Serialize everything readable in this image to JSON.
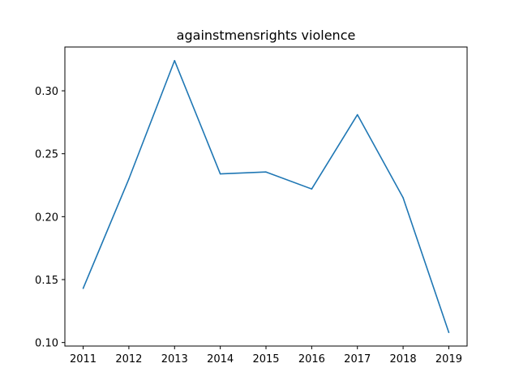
{
  "chart_data": {
    "type": "line",
    "title": "againstmensrights violence",
    "xlabel": "",
    "ylabel": "",
    "x": [
      2011,
      2012,
      2013,
      2014,
      2015,
      2016,
      2017,
      2018,
      2019
    ],
    "series": [
      {
        "values": [
          0.143,
          0.23,
          0.324,
          0.234,
          0.2355,
          0.222,
          0.281,
          0.215,
          0.108
        ],
        "color": "#1f77b4"
      }
    ],
    "xlim": [
      2010.6,
      2019.4
    ],
    "ylim": [
      0.0972,
      0.3348
    ],
    "xticks": [
      "2011",
      "2012",
      "2013",
      "2014",
      "2015",
      "2016",
      "2017",
      "2018",
      "2019"
    ],
    "yticks": [
      "0.10",
      "0.15",
      "0.20",
      "0.25",
      "0.30"
    ],
    "grid": false,
    "legend": "none"
  }
}
